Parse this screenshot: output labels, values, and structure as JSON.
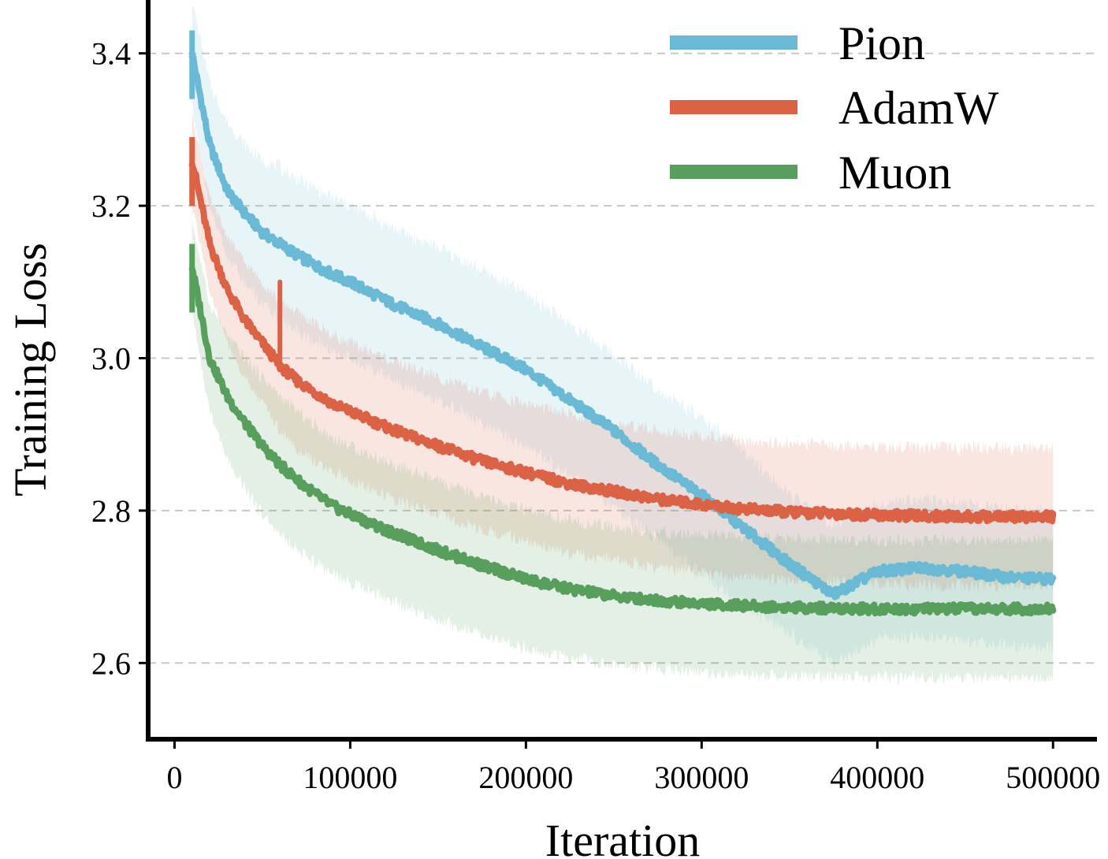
{
  "chart_data": {
    "type": "line",
    "title": "",
    "xlabel": "Iteration",
    "ylabel": "Training Loss",
    "xlim": [
      -15000,
      525000
    ],
    "ylim": [
      2.5,
      3.47
    ],
    "xticks": [
      0,
      100000,
      200000,
      300000,
      400000,
      500000
    ],
    "xtick_labels": [
      "0",
      "100000",
      "200000",
      "300000",
      "400000",
      "500000"
    ],
    "yticks": [
      2.6,
      2.8,
      3.0,
      3.2,
      3.4
    ],
    "ytick_labels": [
      "2.6",
      "2.8",
      "3.0",
      "3.2",
      "3.4"
    ],
    "grid": "y-dashed",
    "legend_position": "top-right",
    "x": [
      10000,
      20000,
      30000,
      40000,
      50000,
      60000,
      70000,
      80000,
      90000,
      100000,
      125000,
      150000,
      175000,
      200000,
      225000,
      250000,
      275000,
      300000,
      325000,
      350000,
      375000,
      400000,
      425000,
      450000,
      475000,
      500000
    ],
    "series": [
      {
        "name": "Pion",
        "color": "#6bbad5",
        "values": [
          3.4,
          3.28,
          3.22,
          3.19,
          3.165,
          3.15,
          3.135,
          3.122,
          3.11,
          3.1,
          3.07,
          3.045,
          3.015,
          2.985,
          2.945,
          2.905,
          2.86,
          2.82,
          2.775,
          2.73,
          2.69,
          2.72,
          2.725,
          2.72,
          2.712,
          2.71
        ],
        "band": [
          0.07,
          0.08,
          0.09,
          0.09,
          0.095,
          0.1,
          0.1,
          0.1,
          0.1,
          0.1,
          0.1,
          0.1,
          0.1,
          0.1,
          0.1,
          0.1,
          0.1,
          0.1,
          0.1,
          0.09,
          0.09,
          0.09,
          0.09,
          0.09,
          0.09,
          0.09
        ]
      },
      {
        "name": "AdamW",
        "color": "#dc6246",
        "values": [
          3.26,
          3.15,
          3.09,
          3.05,
          3.02,
          2.99,
          2.97,
          2.955,
          2.94,
          2.93,
          2.905,
          2.885,
          2.865,
          2.85,
          2.835,
          2.825,
          2.815,
          2.808,
          2.802,
          2.798,
          2.796,
          2.794,
          2.793,
          2.792,
          2.792,
          2.792
        ],
        "band": [
          0.06,
          0.06,
          0.07,
          0.075,
          0.08,
          0.085,
          0.09,
          0.09,
          0.09,
          0.09,
          0.09,
          0.09,
          0.09,
          0.09,
          0.09,
          0.09,
          0.09,
          0.09,
          0.09,
          0.09,
          0.09,
          0.09,
          0.09,
          0.09,
          0.09,
          0.09
        ]
      },
      {
        "name": "Muon",
        "color": "#589f5e",
        "values": [
          3.12,
          3.0,
          2.95,
          2.915,
          2.885,
          2.86,
          2.84,
          2.822,
          2.806,
          2.795,
          2.77,
          2.748,
          2.728,
          2.71,
          2.697,
          2.688,
          2.682,
          2.678,
          2.675,
          2.673,
          2.672,
          2.671,
          2.671,
          2.671,
          2.671,
          2.671
        ],
        "band": [
          0.06,
          0.07,
          0.08,
          0.085,
          0.09,
          0.09,
          0.09,
          0.09,
          0.09,
          0.09,
          0.09,
          0.09,
          0.09,
          0.09,
          0.09,
          0.09,
          0.09,
          0.09,
          0.09,
          0.09,
          0.09,
          0.09,
          0.09,
          0.09,
          0.09,
          0.09
        ]
      }
    ],
    "annotations": [
      {
        "series": "AdamW",
        "type": "spike",
        "x": 60000,
        "y_from": 2.99,
        "y_to": 3.1
      }
    ]
  }
}
